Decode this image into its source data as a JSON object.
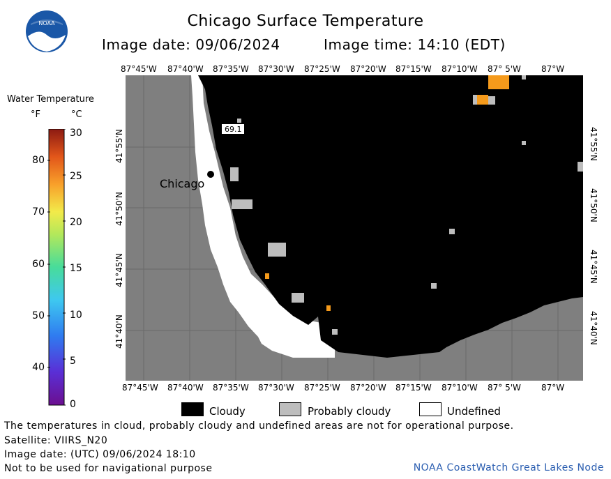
{
  "header": {
    "title": "Chicago Surface Temperature",
    "image_date": "Image date: 09/06/2024",
    "image_time": "Image time: 14:10 (EDT)"
  },
  "logo": {
    "icon": "noaa-logo-icon",
    "text": "NOAA"
  },
  "legend": {
    "title": "Water Temperature",
    "unit_f": "°F",
    "unit_c": "°C",
    "fahrenheit_ticks": [
      "80",
      "70",
      "60",
      "50",
      "40"
    ],
    "celsius_ticks": [
      "30",
      "25",
      "20",
      "15",
      "10",
      "5",
      "0"
    ]
  },
  "map": {
    "lon_labels_top": [
      "87°45'W",
      "87°40'W",
      "87°35'W",
      "87°30'W",
      "87°25'W",
      "87°20'W",
      "87°15'W",
      "87°10'W",
      "87° 5'W",
      "87°W"
    ],
    "lon_labels_bottom": [
      "87°45'W",
      "87°40'W",
      "87°35'W",
      "87°30'W",
      "87°25'W",
      "87°20'W",
      "87°15'W",
      "87°10'W",
      "87° 5'W",
      "87°W"
    ],
    "lat_labels": [
      "41°55'N",
      "41°50'N",
      "41°45'N",
      "41°40'N"
    ],
    "city_label": "Chicago",
    "temp_annotation": "69.1",
    "colors": {
      "land": "#7f7f7f",
      "cloudy": "#000000",
      "probably_cloudy": "#bdbdbd",
      "undefined": "#ffffff",
      "warm": "#f59a1b"
    }
  },
  "key": {
    "cloudy": "Cloudy",
    "probably_cloudy": "Probably cloudy",
    "undefined": "Undefined"
  },
  "footer": {
    "line1": "The temperatures in cloud, probably cloudy and undefined areas are not for operational purpose.",
    "line2": "Satellite: VIIRS_N20",
    "line3": "Image date: (UTC) 09/06/2024  18:10",
    "line4": "Not to be used for navigational purpose",
    "credit": "NOAA CoastWatch Great Lakes Node"
  }
}
